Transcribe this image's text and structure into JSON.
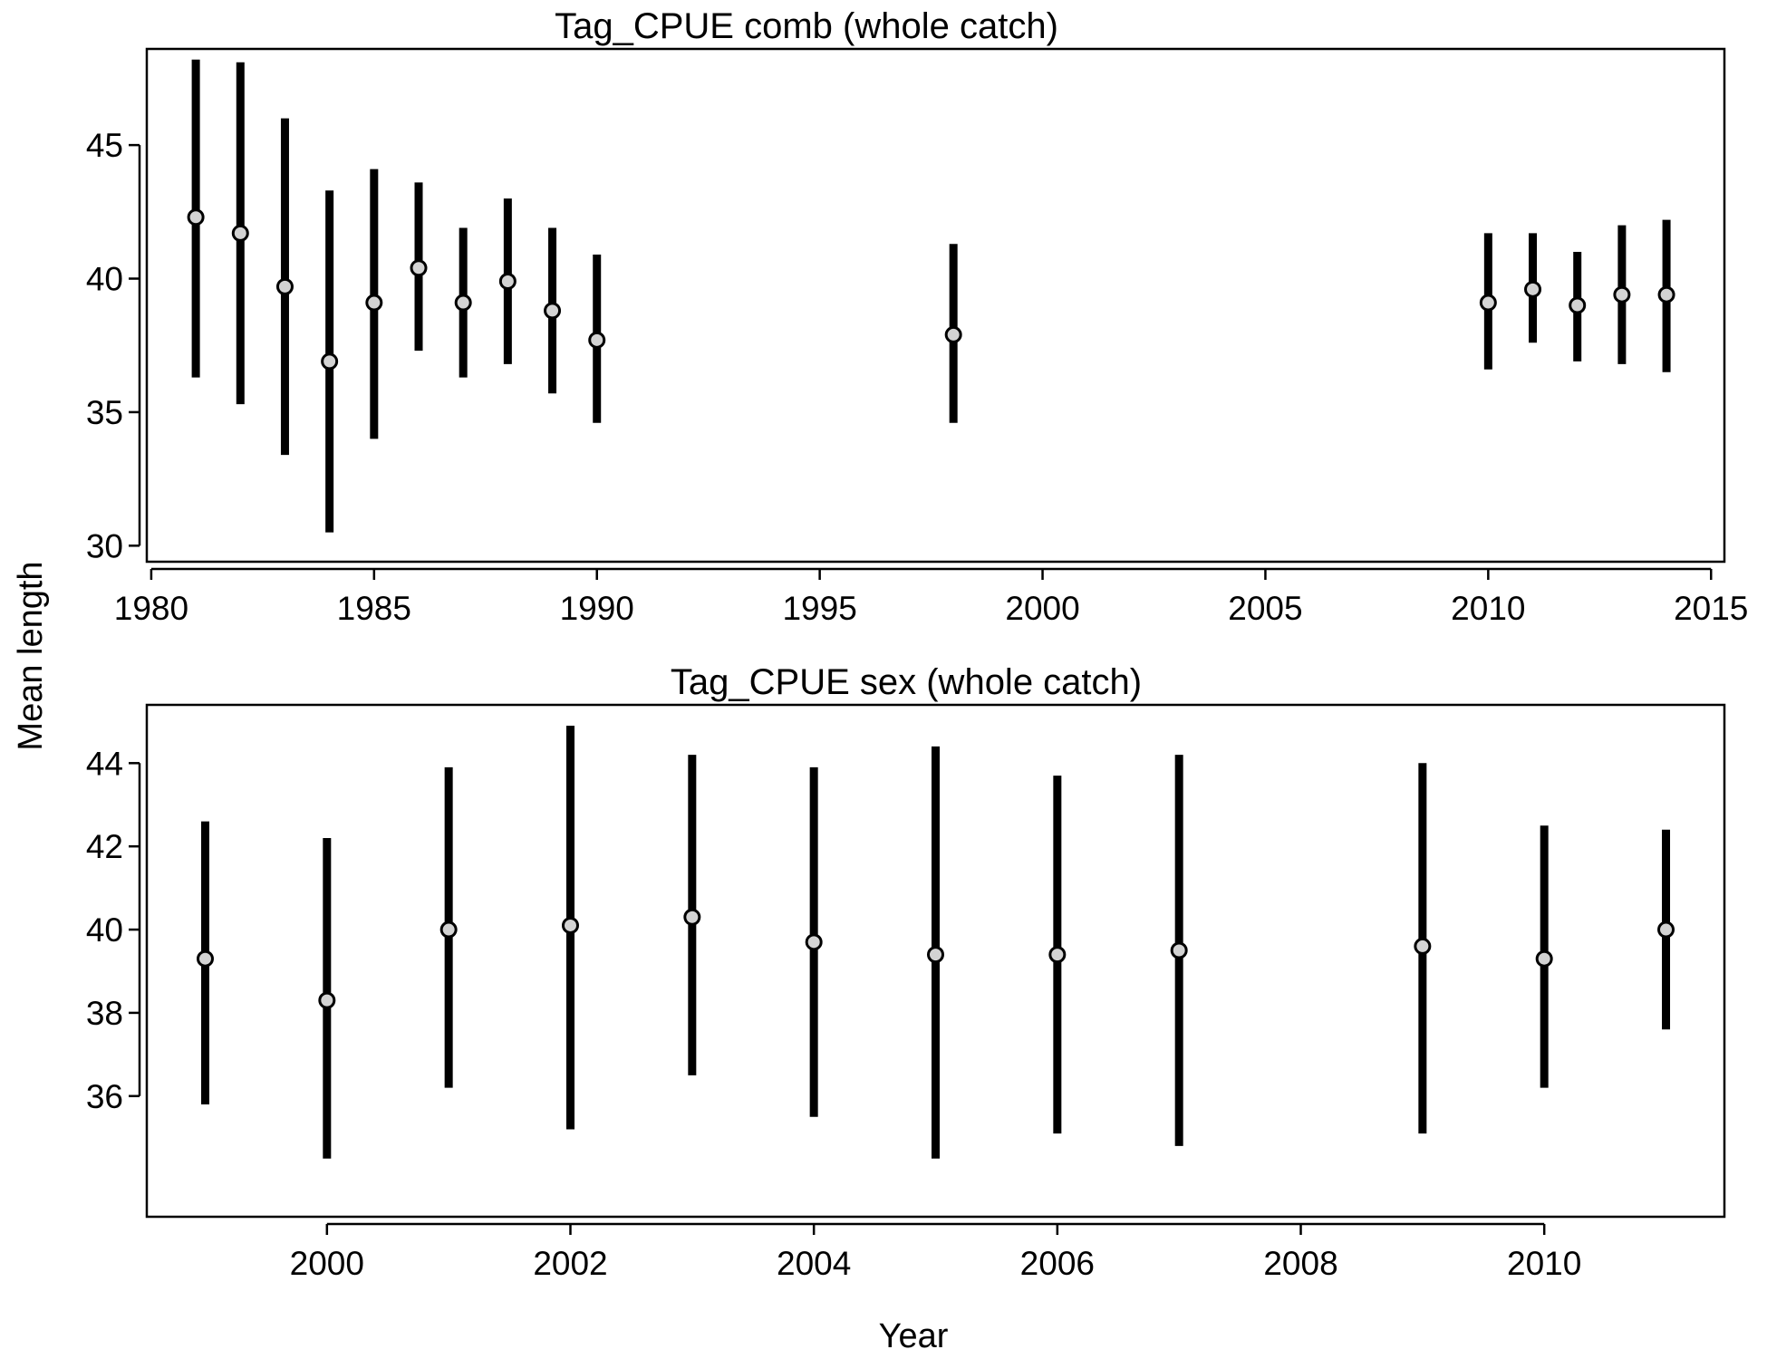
{
  "ylabel": "Mean length",
  "xlabel": "Year",
  "colors": {
    "interval": "#000000",
    "point_fill": "#d3d3d3",
    "point_stroke": "#000000",
    "frame": "#000000"
  },
  "chart_data": [
    {
      "type": "scatter",
      "title": "Tag_CPUE comb (whole catch)",
      "xlabel": "",
      "ylabel": "Mean length",
      "xlim": [
        1979.9,
        2015.3
      ],
      "ylim": [
        29.4,
        48.6
      ],
      "xticks": [
        1980,
        1985,
        1990,
        1995,
        2000,
        2005,
        2010,
        2015
      ],
      "yticks": [
        30,
        35,
        40,
        45
      ],
      "grid": false,
      "series": [
        {
          "x": [
            1981,
            1982,
            1983,
            1984,
            1985,
            1986,
            1987,
            1988,
            1989,
            1990,
            1998,
            2010,
            2011,
            2012,
            2013,
            2014
          ],
          "y": [
            42.3,
            41.7,
            39.7,
            36.9,
            39.1,
            40.4,
            39.1,
            39.9,
            38.8,
            37.7,
            37.9,
            39.1,
            39.6,
            39.0,
            39.4,
            39.4
          ],
          "lower": [
            36.3,
            35.3,
            33.4,
            30.5,
            34.0,
            37.3,
            36.3,
            36.8,
            35.7,
            34.6,
            34.6,
            36.6,
            37.6,
            36.9,
            36.8,
            36.5
          ],
          "upper": [
            48.2,
            48.1,
            46.0,
            43.3,
            44.1,
            43.6,
            41.9,
            43.0,
            41.9,
            40.9,
            41.3,
            41.7,
            41.7,
            41.0,
            42.0,
            42.2
          ]
        }
      ]
    },
    {
      "type": "scatter",
      "title": "Tag_CPUE sex (whole catch)",
      "xlabel": "Year",
      "ylabel": "Mean length",
      "xlim": [
        1998.52,
        2011.48
      ],
      "ylim": [
        33.1,
        45.4
      ],
      "xticks": [
        2000,
        2002,
        2004,
        2006,
        2008,
        2010
      ],
      "yticks": [
        36,
        38,
        40,
        42,
        44
      ],
      "grid": false,
      "series": [
        {
          "x": [
            1999,
            2000,
            2001,
            2002,
            2003,
            2004,
            2005,
            2006,
            2007,
            2009,
            2010,
            2011
          ],
          "y": [
            39.3,
            38.3,
            40.0,
            40.1,
            40.3,
            39.7,
            39.4,
            39.4,
            39.5,
            39.6,
            39.3,
            40.0
          ],
          "lower": [
            35.8,
            34.5,
            36.2,
            35.2,
            36.5,
            35.5,
            34.5,
            35.1,
            34.8,
            35.1,
            36.2,
            37.6
          ],
          "upper": [
            42.6,
            42.2,
            43.9,
            44.9,
            44.2,
            43.9,
            44.4,
            43.7,
            44.2,
            44.0,
            42.5,
            42.4
          ]
        }
      ]
    }
  ]
}
